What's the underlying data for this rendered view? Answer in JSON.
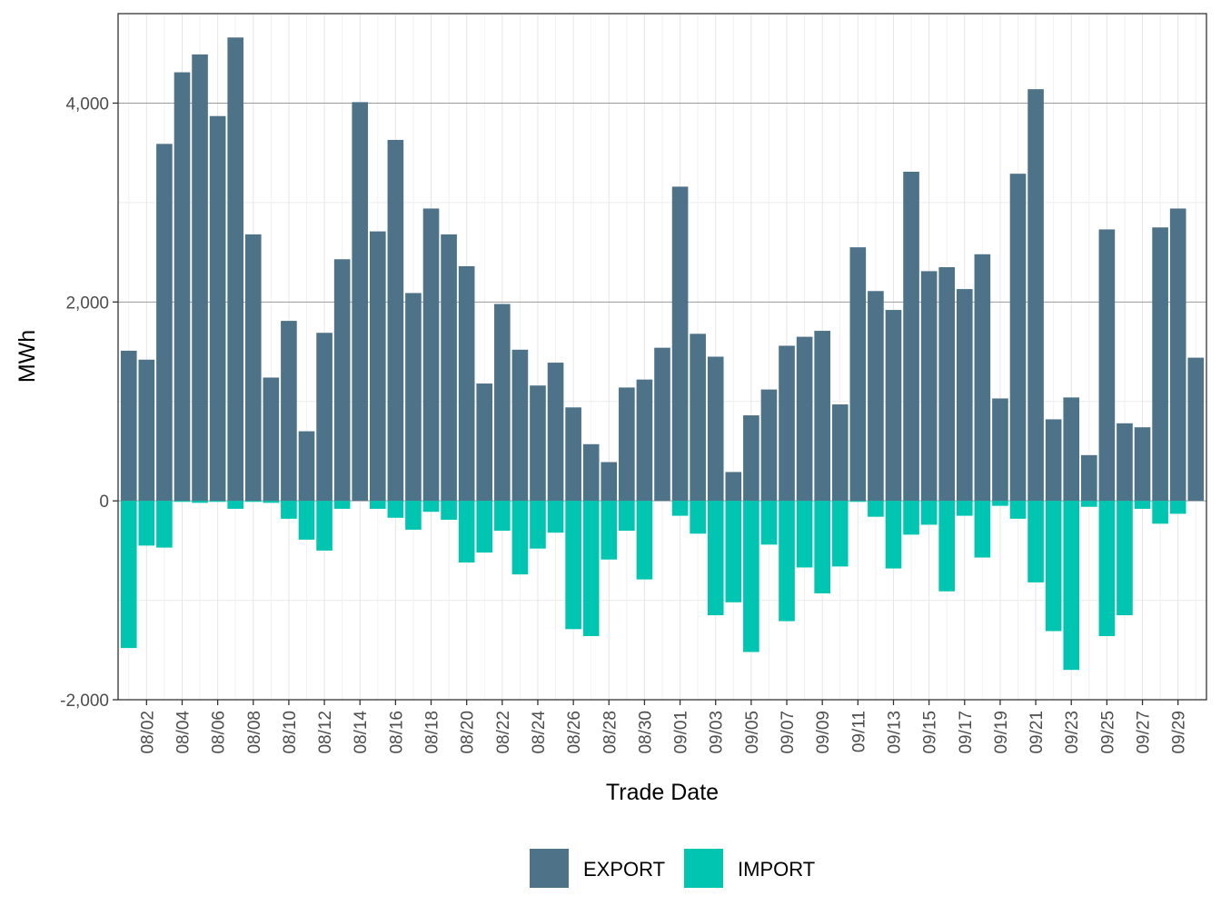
{
  "chart_data": {
    "type": "bar",
    "stacking": "diverging",
    "xlabel": "Trade Date",
    "ylabel": "MWh",
    "ylim": [
      -2000,
      4900
    ],
    "y_ticks": [
      -2000,
      0,
      2000,
      4000
    ],
    "y_tick_labels": [
      "-2,000",
      "0",
      "2,000",
      "4,000"
    ],
    "categories": [
      "08/01",
      "08/02",
      "08/03",
      "08/04",
      "08/05",
      "08/06",
      "08/07",
      "08/08",
      "08/09",
      "08/10",
      "08/11",
      "08/12",
      "08/13",
      "08/14",
      "08/15",
      "08/16",
      "08/17",
      "08/18",
      "08/19",
      "08/20",
      "08/21",
      "08/22",
      "08/23",
      "08/24",
      "08/25",
      "08/26",
      "08/27",
      "08/28",
      "08/29",
      "08/30",
      "08/31",
      "09/01",
      "09/02",
      "09/03",
      "09/04",
      "09/05",
      "09/06",
      "09/07",
      "09/08",
      "09/09",
      "09/10",
      "09/11",
      "09/12",
      "09/13",
      "09/14",
      "09/15",
      "09/16",
      "09/17",
      "09/18",
      "09/19",
      "09/20",
      "09/21",
      "09/22",
      "09/23",
      "09/24",
      "09/25",
      "09/26",
      "09/27",
      "09/28",
      "09/29",
      "09/30"
    ],
    "x_tick_labels": [
      "08/02",
      "08/04",
      "08/06",
      "08/08",
      "08/10",
      "08/12",
      "08/14",
      "08/16",
      "08/18",
      "08/20",
      "08/22",
      "08/24",
      "08/26",
      "08/28",
      "08/30",
      "09/01",
      "09/03",
      "09/05",
      "09/07",
      "09/09",
      "09/11",
      "09/13",
      "09/15",
      "09/17",
      "09/19",
      "09/21",
      "09/23",
      "09/25",
      "09/27",
      "09/29"
    ],
    "series": [
      {
        "name": "EXPORT",
        "color": "#4e7388",
        "values": [
          1510,
          1420,
          3590,
          4310,
          4490,
          3870,
          4660,
          2680,
          1240,
          1810,
          700,
          1690,
          2430,
          4010,
          2710,
          3630,
          2090,
          2940,
          2680,
          2360,
          1180,
          1980,
          1520,
          1160,
          1390,
          940,
          570,
          390,
          1140,
          1220,
          1540,
          3160,
          1680,
          1450,
          290,
          860,
          1120,
          1560,
          1650,
          1710,
          970,
          2550,
          2110,
          1920,
          3310,
          2310,
          2350,
          2130,
          2480,
          1030,
          3290,
          4140,
          820,
          1040,
          460,
          2730,
          780,
          740,
          2750,
          2940,
          1440
        ]
      },
      {
        "name": "IMPORT",
        "color": "#00c5b0",
        "values": [
          -1480,
          -450,
          -470,
          -10,
          -20,
          -10,
          -80,
          -10,
          -20,
          -180,
          -390,
          -500,
          -80,
          0,
          -80,
          -170,
          -290,
          -110,
          -190,
          -620,
          -520,
          -300,
          -740,
          -480,
          -320,
          -1290,
          -1360,
          -590,
          -300,
          -790,
          0,
          -150,
          -330,
          -1150,
          -1020,
          -1520,
          -440,
          -1210,
          -670,
          -930,
          -660,
          -10,
          -160,
          -680,
          -340,
          -240,
          -910,
          -150,
          -570,
          -50,
          -180,
          -820,
          -1310,
          -1700,
          -60,
          -1360,
          -1150,
          -80,
          -230,
          -130,
          0
        ]
      }
    ],
    "legend": {
      "position": "bottom",
      "items": [
        {
          "label": "EXPORT",
          "color": "#4e7388"
        },
        {
          "label": "IMPORT",
          "color": "#00c5b0"
        }
      ]
    },
    "grid": true
  }
}
